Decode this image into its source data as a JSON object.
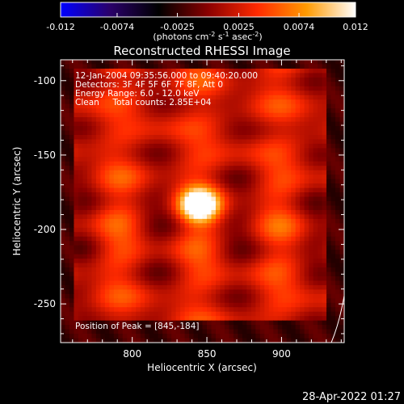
{
  "chart_data": {
    "type": "heatmap",
    "title": "Reconstructed RHESSI Image",
    "xlabel": "Heliocentric X (arcsec)",
    "ylabel": "Heliocentric Y (arcsec)",
    "xlim": [
      752,
      942
    ],
    "ylim": [
      -276,
      -86
    ],
    "x_ticks": [
      800,
      850,
      900
    ],
    "y_ticks": [
      -100,
      -150,
      -200,
      -250
    ],
    "x_tick_labels": [
      "800",
      "850",
      "900"
    ],
    "y_tick_labels": [
      "-100",
      "-150",
      "-200",
      "-250"
    ],
    "colorbar": {
      "range": [
        -0.012,
        0.012
      ],
      "ticks": [
        -0.012,
        -0.0074,
        -0.0025,
        0.0025,
        0.0074,
        0.012
      ],
      "tick_labels": [
        "-0.012",
        "-0.0074",
        "-0.0025",
        "0.0025",
        "0.0074",
        "0.012"
      ],
      "label_prefix": "(photons cm",
      "label_sup1": "-2",
      "label_mid": " s",
      "label_sup2": "-1",
      "label_mid2": " asec",
      "label_sup3": "-2",
      "label_suffix": ")",
      "colors": [
        "#0000ff",
        "#2a006a",
        "#000000",
        "#8a0000",
        "#ff2a00",
        "#ff9a00",
        "#ffffff"
      ]
    },
    "peak": {
      "x": 845,
      "y": -184,
      "value": 0.012
    },
    "annotations": {
      "time": "12-Jan-2004 09:35:56.000 to 09:40:20.000",
      "detectors": "Detectors: 3F 4F 5F 6F 7F 8F, Att 0",
      "energy": "Energy Range: 6.0 - 12.0 keV",
      "clean": "Clean     Total counts: 2.85E+04",
      "peak_label": "Position of Peak = [845,-184]"
    }
  },
  "footer": {
    "date": "28-Apr-2022 01:27"
  }
}
